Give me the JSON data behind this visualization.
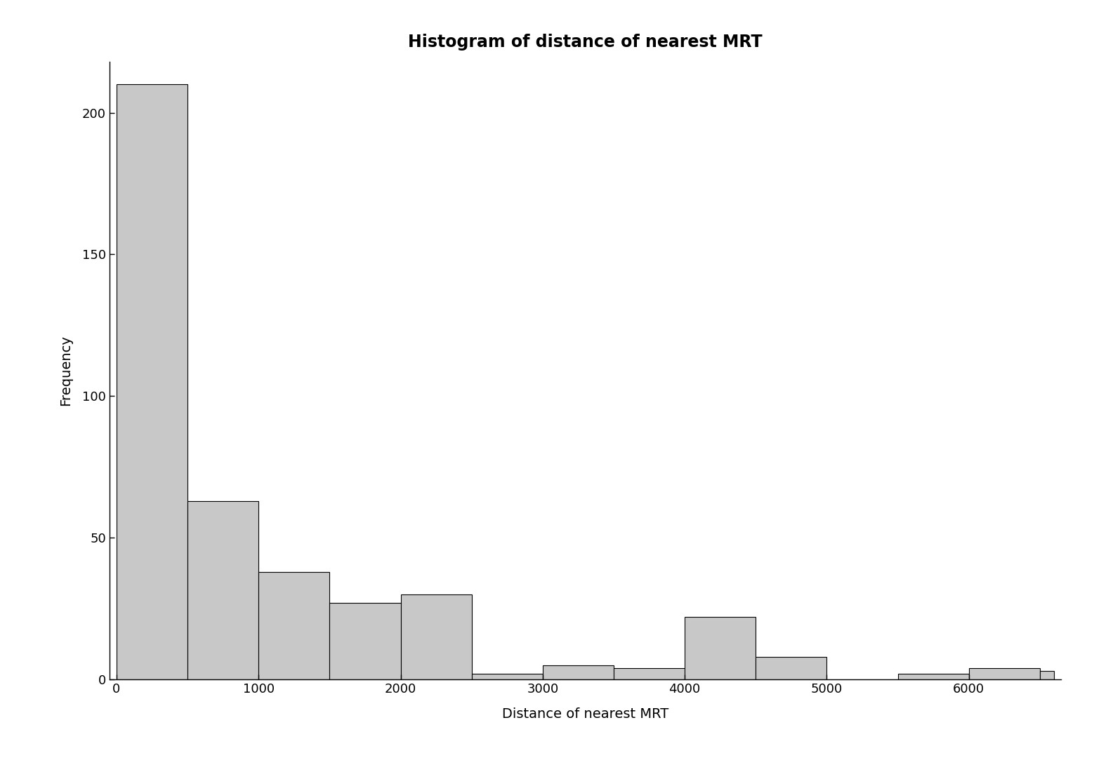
{
  "title": "Histogram of distance of nearest MRT",
  "xlabel": "Distance of nearest MRT",
  "ylabel": "Frequency",
  "bar_color": "#c8c8c8",
  "bar_edge_color": "#000000",
  "background_color": "#ffffff",
  "bin_edges": [
    0,
    500,
    1000,
    1500,
    2000,
    2500,
    3000,
    3500,
    4000,
    4500,
    5000,
    5500,
    6000,
    6500,
    6600
  ],
  "frequencies": [
    210,
    63,
    38,
    27,
    30,
    2,
    5,
    4,
    22,
    8,
    0,
    2,
    4,
    3
  ],
  "xlim": [
    -50,
    6650
  ],
  "ylim": [
    0,
    218
  ],
  "yticks": [
    0,
    50,
    100,
    150,
    200
  ],
  "xticks": [
    0,
    1000,
    2000,
    3000,
    4000,
    5000,
    6000
  ],
  "title_fontsize": 17,
  "label_fontsize": 14,
  "tick_fontsize": 13
}
